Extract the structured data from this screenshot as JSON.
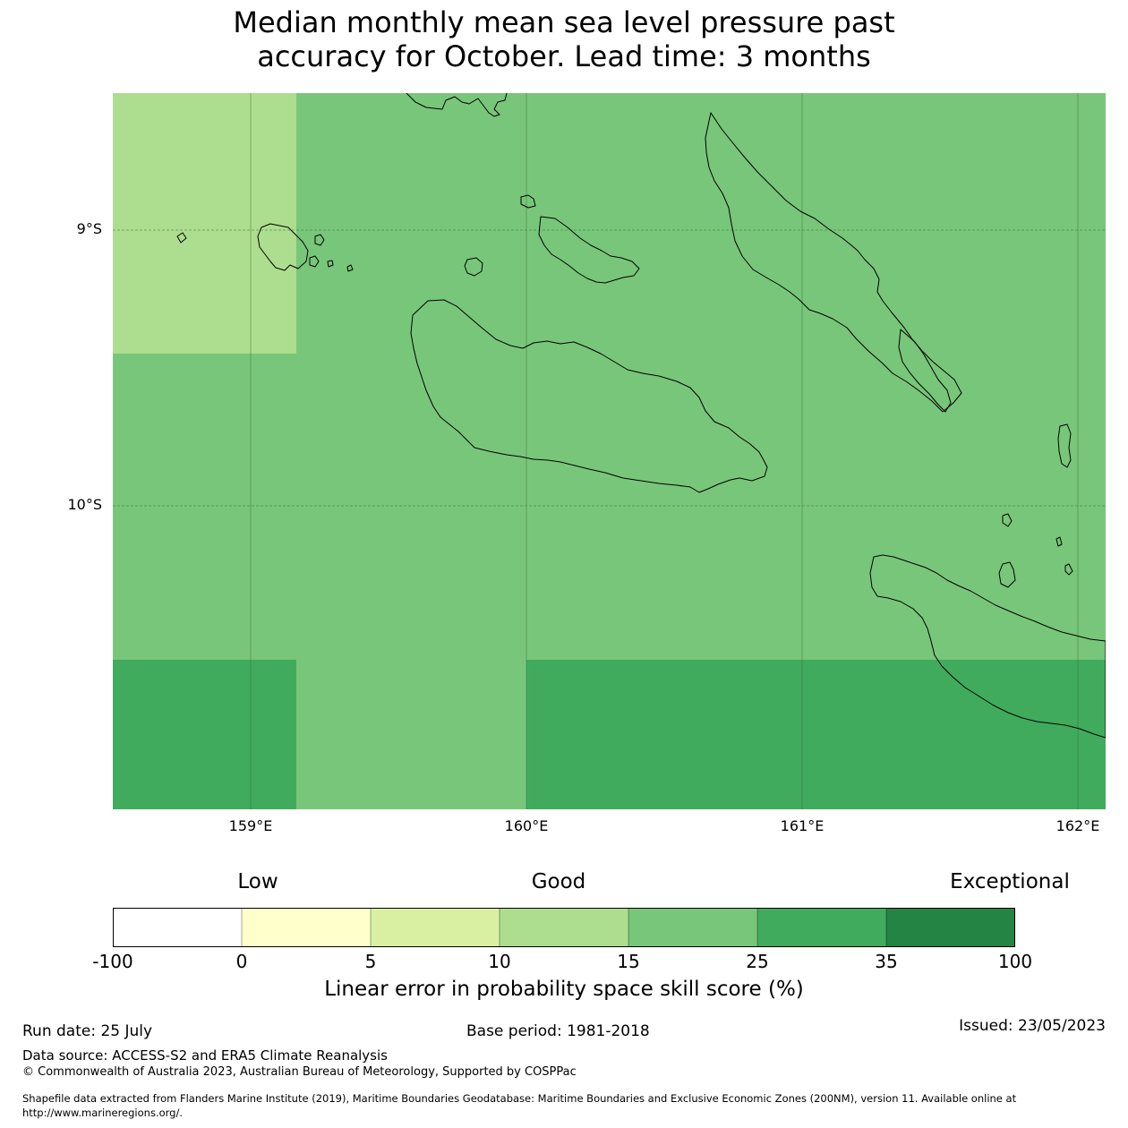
{
  "title_line1": "Median monthly mean sea level pressure past",
  "title_line2": "accuracy for October. Lead time: 3 months",
  "lat_labels": [
    "9°S",
    "10°S"
  ],
  "lon_labels": [
    "159°E",
    "160°E",
    "161°E",
    "162°E"
  ],
  "map_cells": [
    {
      "lon_range": [
        "158.5",
        "159.17"
      ],
      "lat_range": [
        "8.5S",
        "9.45S"
      ],
      "category": "10-15",
      "color": "#addd8e"
    },
    {
      "lon_range": [
        "159.17",
        "162.1"
      ],
      "lat_range": [
        "8.5S",
        "9.45S"
      ],
      "category": "15-25",
      "color": "#78c679"
    },
    {
      "lon_range": [
        "158.5",
        "162.1"
      ],
      "lat_range": [
        "9.45S",
        "10.56S"
      ],
      "category": "15-25",
      "color": "#78c679"
    },
    {
      "lon_range": [
        "158.5",
        "159.17"
      ],
      "lat_range": [
        "10.56S",
        "11.1S"
      ],
      "category": "25-35",
      "color": "#41ab5d"
    },
    {
      "lon_range": [
        "159.17",
        "160.0"
      ],
      "lat_range": [
        "10.56S",
        "11.1S"
      ],
      "category": "15-25",
      "color": "#78c679"
    },
    {
      "lon_range": [
        "160.0",
        "162.1"
      ],
      "lat_range": [
        "10.56S",
        "11.1S"
      ],
      "category": "25-35",
      "color": "#41ab5d"
    }
  ],
  "colorbar": {
    "words": [
      "Low",
      "Good",
      "Exceptional"
    ],
    "ticks": [
      "-100",
      "0",
      "5",
      "10",
      "15",
      "25",
      "35",
      "100"
    ],
    "colors": [
      "#ffffff",
      "#ffffcc",
      "#d9f0a3",
      "#addd8e",
      "#78c679",
      "#41ab5d",
      "#238443"
    ],
    "label": "Linear error in probability space skill score (%)"
  },
  "footer": {
    "run_date": "Run date: 25 July",
    "base_period": "Base period: 1981-2018",
    "issued": "Issued: 23/05/2023",
    "data_source": "Data source: ACCESS-S2 and ERA5 Climate Reanalysis",
    "copyright": "© Commonwealth of Australia 2023, Australian Bureau of Meteorology, Supported by COSPPac",
    "shapefile_line1": "Shapefile data extracted from Flanders Marine Institute (2019), Maritime Boundaries Geodatabase: Maritime Boundaries and Exclusive Economic Zones (200NM), version 11. Available online at",
    "shapefile_line2": "http://www.marineregions.org/."
  }
}
